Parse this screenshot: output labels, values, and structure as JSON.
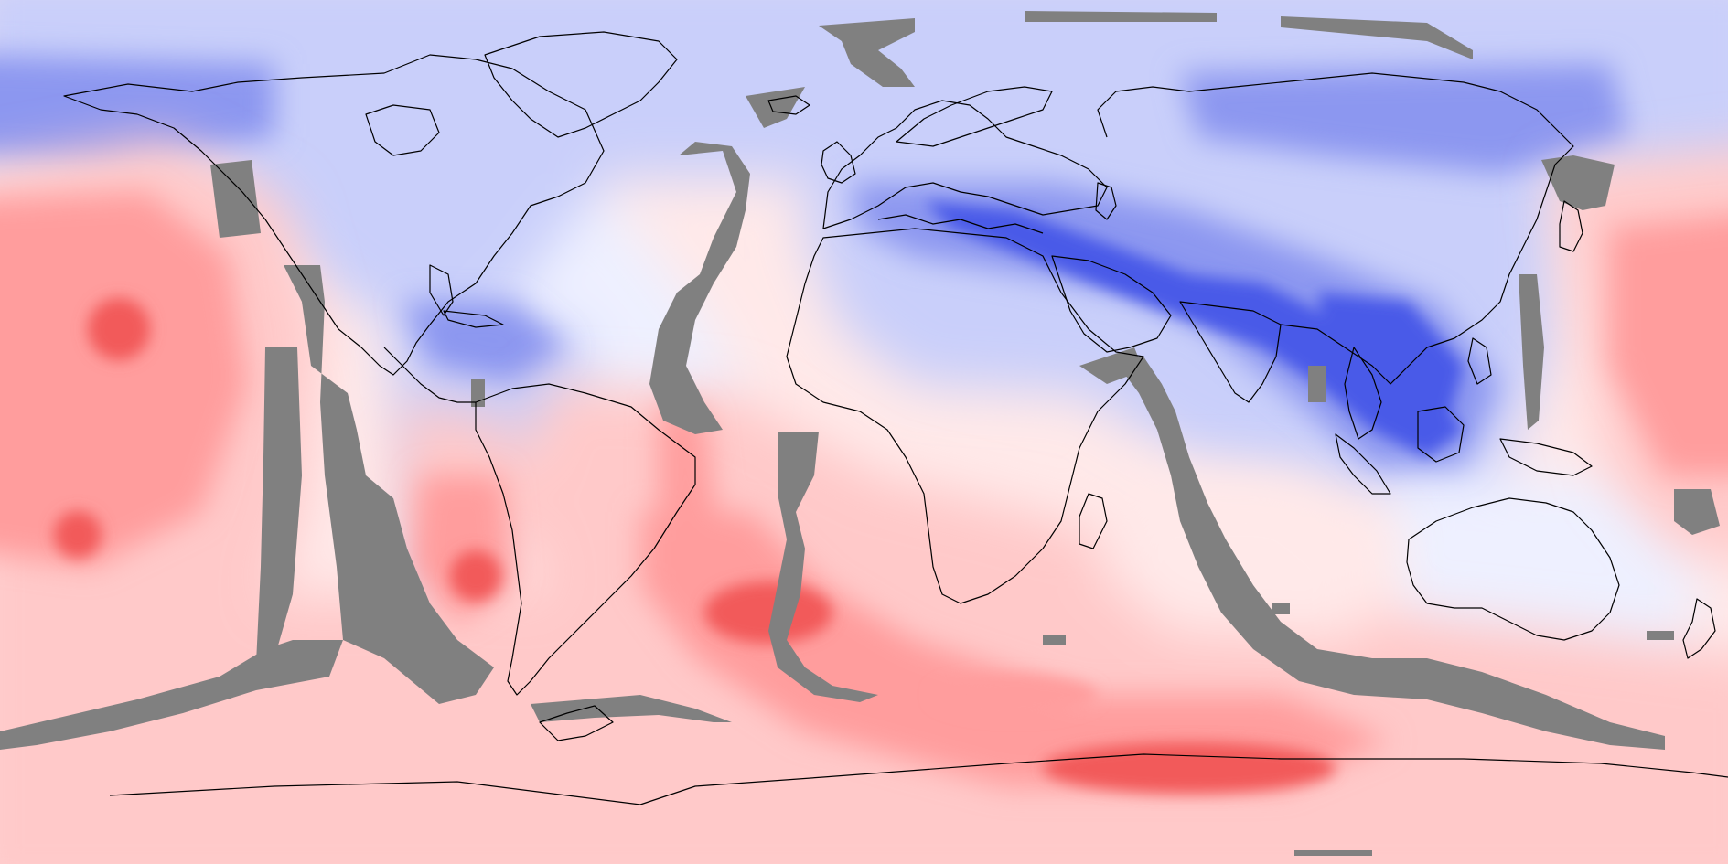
{
  "map": {
    "projection": "equirectangular",
    "field": "diverging-anomaly",
    "palette": {
      "strong_negative": "#4a5ae8",
      "negative": "#8c97f0",
      "weak_negative": "#c9cffa",
      "faint_negative": "#eef0ff",
      "neutral": "#ffffff",
      "faint_positive": "#ffe9e9",
      "weak_positive": "#ffc9c9",
      "positive": "#ff9d9d",
      "strong_positive": "#f25a5a",
      "masked": "#808080",
      "coastline": "#000000"
    },
    "masked_band_icon": "grey-mask-band",
    "coastline_icon": "coastline-outline"
  }
}
